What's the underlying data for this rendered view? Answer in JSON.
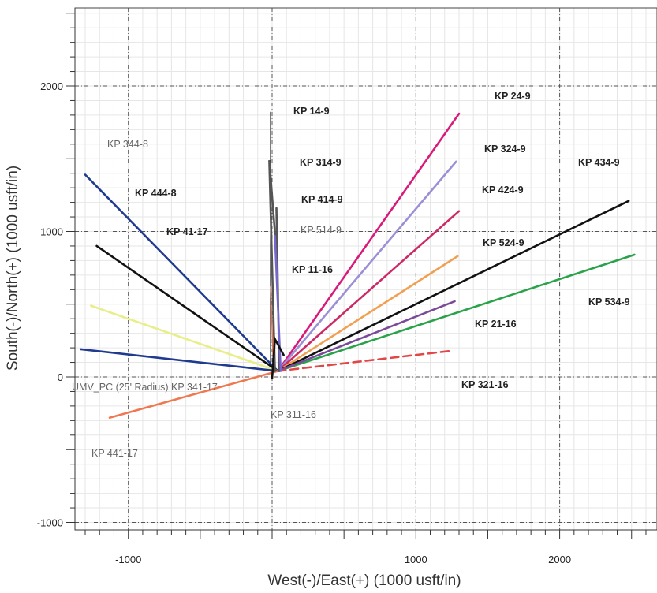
{
  "chart_data": {
    "type": "line",
    "xlabel": "West(-)/East(+) (1000 usft/in)",
    "ylabel": "South(-)/North(+) (1000 usft/in)",
    "xlim": [
      -1550,
      2600
    ],
    "ylim": [
      -1020,
      2580
    ],
    "x_ticks": [
      -1000,
      1000,
      2000
    ],
    "y_ticks": [
      2000,
      1000,
      0,
      -1000
    ],
    "grid": true,
    "origin": {
      "x": 40,
      "y": 40
    },
    "series": [
      {
        "name": "KP 14-9",
        "color": "#111111",
        "x": [
          -10,
          -10
        ],
        "y": [
          40,
          1820
        ]
      },
      {
        "name": "KP 24-9",
        "color": "#d81b7a",
        "x": [
          40,
          1300
        ],
        "y": [
          40,
          1810
        ]
      },
      {
        "name": "KP 324-9",
        "color": "#9b8fd6",
        "x": [
          40,
          1280
        ],
        "y": [
          40,
          1480
        ]
      },
      {
        "name": "KP 424-9",
        "color": "#cc2a66",
        "x": [
          40,
          1300
        ],
        "y": [
          40,
          1140
        ]
      },
      {
        "name": "KP 524-9",
        "color": "#f0a050",
        "x": [
          40,
          1290
        ],
        "y": [
          40,
          830
        ]
      },
      {
        "name": "KP 434-9",
        "color": "#111111",
        "x": [
          40,
          2480
        ],
        "y": [
          40,
          1210
        ]
      },
      {
        "name": "KP 534-9",
        "color": "#2aa24a",
        "x": [
          40,
          2520
        ],
        "y": [
          40,
          840
        ]
      },
      {
        "name": "KP 21-16",
        "color": "#7a4a9a",
        "x": [
          40,
          1270
        ],
        "y": [
          40,
          520
        ]
      },
      {
        "name": "KP 321-16",
        "color": "#e04848",
        "x": [
          40,
          1250
        ],
        "y": [
          40,
          180
        ]
      },
      {
        "name": "KP 344-8",
        "color": "#1f3a8f",
        "x": [
          40,
          -1300
        ],
        "y": [
          40,
          1390
        ]
      },
      {
        "name": "KP 444-8",
        "color": "#111111",
        "x": [
          40,
          -1220
        ],
        "y": [
          40,
          900
        ]
      },
      {
        "name": "KP 41-17",
        "color": "#e8ee88",
        "x": [
          40,
          -1260
        ],
        "y": [
          40,
          490
        ]
      },
      {
        "name": "UMV_PC (25' Radius) KP 341-17",
        "color": "#1f3a8f",
        "x": [
          40,
          -1330
        ],
        "y": [
          40,
          190
        ]
      },
      {
        "name": "KP 441-17",
        "color": "#f07850",
        "x": [
          40,
          -1130
        ],
        "y": [
          40,
          -280
        ]
      },
      {
        "name": "KP 314-9",
        "color": "#555555",
        "x": [
          20,
          -20,
          30
        ],
        "y": [
          40,
          1490,
          860
        ]
      },
      {
        "name": "KP 414-9",
        "color": "#555555",
        "x": [
          50,
          30
        ],
        "y": [
          40,
          1160
        ]
      },
      {
        "name": "KP 514-9",
        "color": "#7766cc",
        "x": [
          60,
          20
        ],
        "y": [
          40,
          970
        ]
      },
      {
        "name": "KP 11-16",
        "color": "#e07050",
        "x": [
          10,
          -10
        ],
        "y": [
          40,
          620
        ]
      },
      {
        "name": "KP 311-16",
        "color": "#111111",
        "x": [
          0,
          20,
          80
        ],
        "y": [
          -10,
          260,
          150
        ]
      }
    ]
  }
}
